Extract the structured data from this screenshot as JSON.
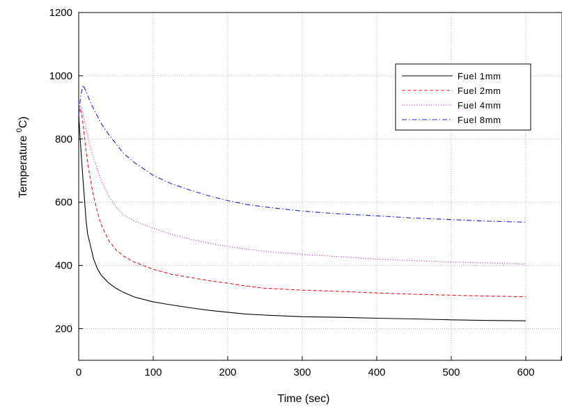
{
  "chart_data": {
    "type": "line",
    "title": "",
    "xlabel": "Time (sec)",
    "ylabel_main": "Temperature ",
    "ylabel_sup": "0",
    "ylabel_unit": "C)",
    "xlim": [
      0,
      650
    ],
    "ylim": [
      100,
      1200
    ],
    "xticks": [
      0,
      100,
      200,
      300,
      400,
      500,
      600
    ],
    "xtick_labels": [
      "0",
      "100",
      "200",
      "300",
      "400",
      "500",
      "600"
    ],
    "yticks": [
      200,
      400,
      600,
      800,
      1000,
      1200
    ],
    "ytick_labels": [
      "200",
      "400",
      "600",
      "800",
      "1000",
      "1200"
    ],
    "grid": true,
    "legend_position": "top-right",
    "series": [
      {
        "name": "Fuel 1mm",
        "color": "#000000",
        "dash": "solid",
        "x": [
          0,
          2,
          5,
          8,
          10,
          12,
          15,
          20,
          25,
          30,
          40,
          50,
          60,
          75,
          100,
          125,
          150,
          175,
          200,
          225,
          250,
          300,
          350,
          400,
          450,
          500,
          550,
          600
        ],
        "y": [
          880,
          800,
          700,
          600,
          540,
          500,
          470,
          420,
          390,
          370,
          345,
          328,
          315,
          300,
          285,
          275,
          266,
          258,
          252,
          246,
          243,
          238,
          236,
          233,
          231,
          228,
          226,
          225
        ]
      },
      {
        "name": "Fuel 2mm",
        "color": "#e8141a",
        "dash": "dashed",
        "x": [
          0,
          2,
          4,
          6,
          8,
          10,
          15,
          20,
          25,
          30,
          40,
          50,
          60,
          75,
          100,
          125,
          150,
          175,
          200,
          225,
          250,
          300,
          350,
          400,
          450,
          500,
          550,
          600
        ],
        "y": [
          880,
          895,
          880,
          845,
          800,
          760,
          680,
          620,
          570,
          530,
          480,
          450,
          430,
          410,
          388,
          372,
          362,
          352,
          344,
          335,
          328,
          322,
          318,
          313,
          309,
          306,
          303,
          301
        ]
      },
      {
        "name": "Fuel 4mm",
        "color": "#9e1aa6",
        "dash": "dotted",
        "x": [
          0,
          2,
          4,
          6,
          8,
          10,
          15,
          20,
          25,
          30,
          40,
          50,
          60,
          75,
          100,
          125,
          150,
          175,
          200,
          225,
          250,
          300,
          350,
          400,
          450,
          500,
          550,
          600
        ],
        "y": [
          880,
          905,
          900,
          880,
          855,
          830,
          780,
          740,
          705,
          670,
          620,
          585,
          560,
          540,
          518,
          498,
          483,
          470,
          460,
          452,
          444,
          435,
          428,
          420,
          415,
          411,
          408,
          405
        ]
      },
      {
        "name": "Fuel 8mm",
        "color": "#1f1fd6",
        "dash": "dashdot",
        "x": [
          0,
          3,
          6,
          10,
          15,
          20,
          30,
          40,
          50,
          60,
          75,
          100,
          125,
          150,
          175,
          200,
          225,
          250,
          300,
          350,
          400,
          450,
          500,
          550,
          600
        ],
        "y": [
          880,
          940,
          970,
          950,
          920,
          895,
          850,
          815,
          785,
          755,
          725,
          685,
          658,
          638,
          620,
          605,
          593,
          585,
          572,
          563,
          557,
          550,
          545,
          540,
          537
        ]
      }
    ]
  }
}
